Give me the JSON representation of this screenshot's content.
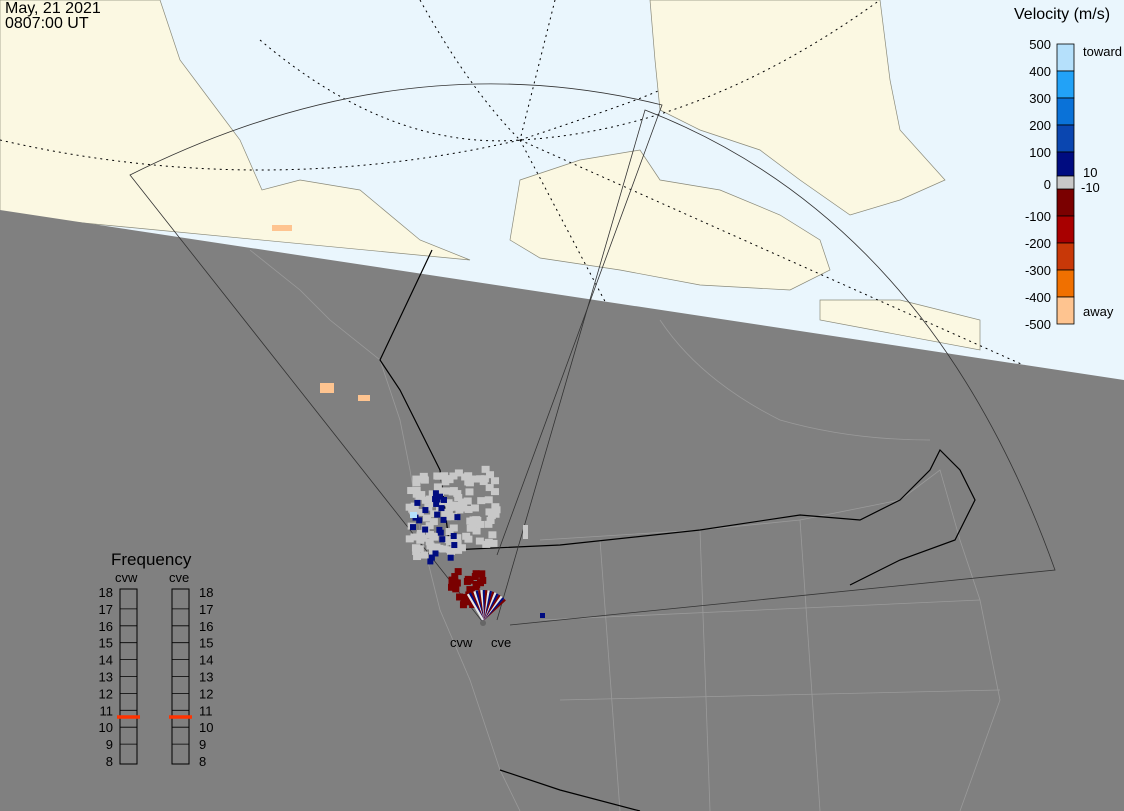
{
  "header": {
    "date": "May, 21 2021",
    "time": "0807:00 UT"
  },
  "colors": {
    "ocean": "#eaf6fd",
    "land": "#fbf8e2",
    "night": "#808080",
    "ground_scatter": "#c8c8c8"
  },
  "velocity_scale": {
    "title": "Velocity (m/s)",
    "ticks": [
      "500",
      "400",
      "300",
      "200",
      "100",
      "0",
      "-100",
      "-200",
      "-300",
      "-400",
      "-500"
    ],
    "toward_label": "toward",
    "away_label": "away",
    "threshold_pos": "10",
    "threshold_neg": "-10",
    "colors": [
      "#b5e0fb",
      "#22a2f7",
      "#0a72d8",
      "#0a46b0",
      "#000c80",
      "#7a0000",
      "#a80000",
      "#c83808",
      "#f07000",
      "#fec490"
    ]
  },
  "radars": [
    {
      "name": "cvw",
      "frequency_mhz": 10.6
    },
    {
      "name": "cve",
      "frequency_mhz": 10.6
    }
  ],
  "frequency_panel": {
    "title": "Frequency",
    "ticks": [
      "18",
      "17",
      "16",
      "15",
      "14",
      "13",
      "12",
      "11",
      "10",
      "9",
      "8"
    ],
    "min": 8,
    "max": 18,
    "marker_color": "#ff3300"
  }
}
